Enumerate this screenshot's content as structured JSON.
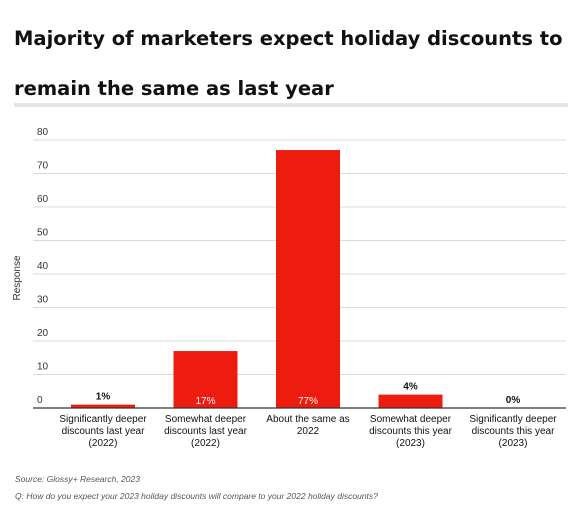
{
  "page": {
    "title": "Majority of marketers expect holiday discounts to remain the same as last year",
    "source": "Source: Glossy+ Research, 2023",
    "question": "Q: How do you expect your 2023 holiday discounts will compare to your 2022 holiday discounts?"
  },
  "colors": {
    "bar": "#ee1c0e",
    "grid": "#d9d9d9",
    "axis": "#333333"
  },
  "chart_data": {
    "type": "bar",
    "ylabel": "Response",
    "ylim": [
      0,
      80
    ],
    "yticks": [
      0,
      10,
      20,
      30,
      40,
      50,
      60,
      70,
      80
    ],
    "grid": true,
    "categories": [
      [
        "Significantly deeper",
        "discounts last year",
        "(2022)"
      ],
      [
        "Somewhat deeper",
        "discounts last year",
        "(2022)"
      ],
      [
        "About the same as",
        "2022"
      ],
      [
        "Somewhat deeper",
        "discounts this year",
        "(2023)"
      ],
      [
        "Significantly deeper",
        "discounts this year",
        "(2023)"
      ]
    ],
    "values": [
      1,
      17,
      77,
      4,
      0
    ],
    "labels": [
      "1%",
      "17%",
      "77%",
      "4%",
      "0%"
    ]
  }
}
